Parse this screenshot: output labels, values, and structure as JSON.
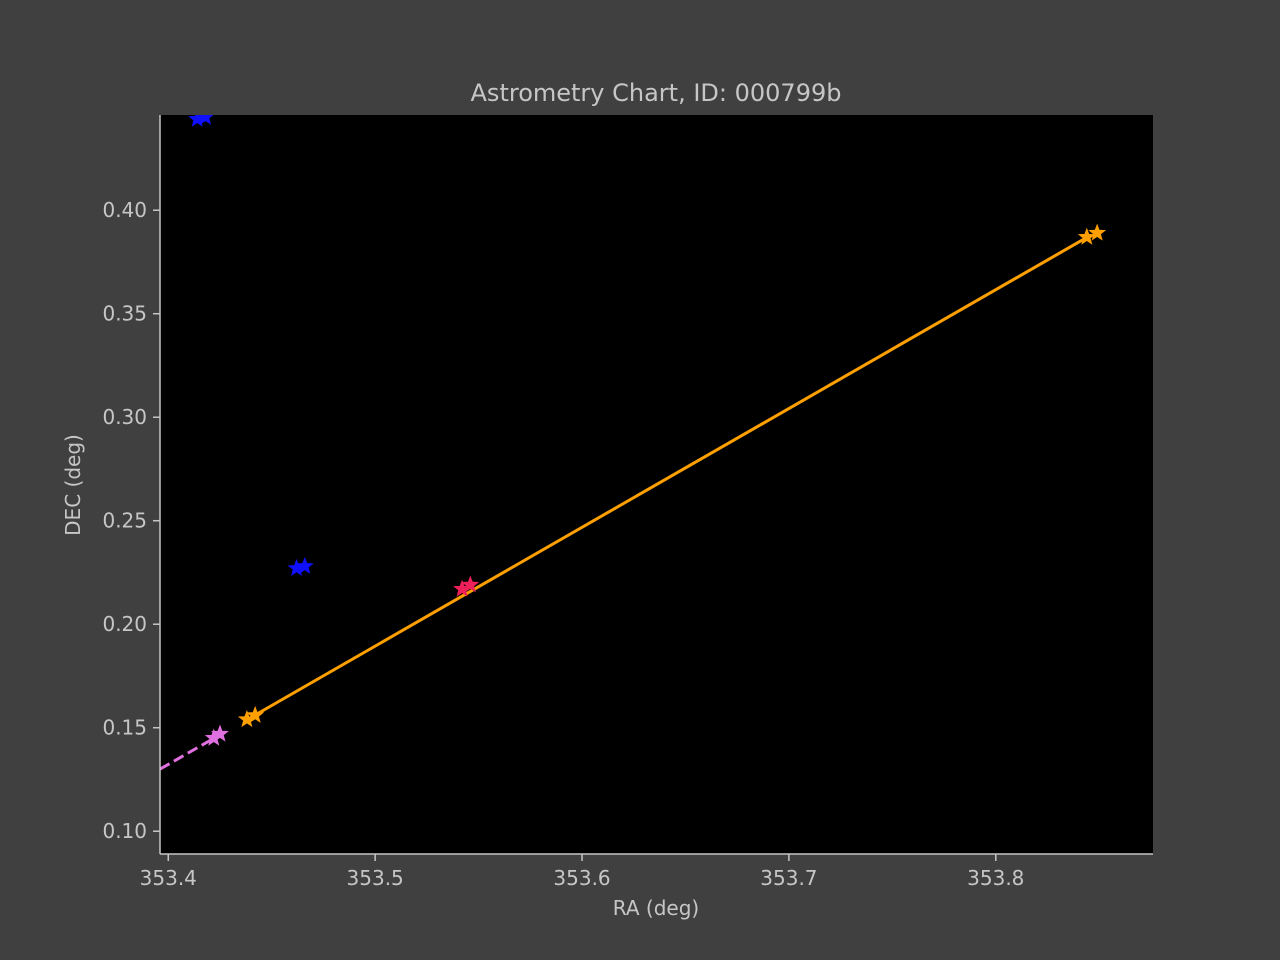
{
  "colors": {
    "figure_bg": "#404040",
    "plot_bg": "#000000",
    "text": "#c6c6c6",
    "axis": "#c6c6c6",
    "orange": "#ffa000",
    "pink": "#e070e0",
    "blue": "#1010ff",
    "red": "#f0205a"
  },
  "chart_data": {
    "type": "scatter",
    "title": "Astrometry Chart, ID: 000799b",
    "xlabel": "RA (deg)",
    "ylabel": "DEC (deg)",
    "xlim": [
      353.396,
      353.876
    ],
    "ylim": [
      0.089,
      0.446
    ],
    "xticks": [
      353.4,
      353.5,
      353.6,
      353.7,
      353.8
    ],
    "xtick_labels": [
      "353.4",
      "353.5",
      "353.6",
      "353.7",
      "353.8"
    ],
    "yticks": [
      0.1,
      0.15,
      0.2,
      0.25,
      0.3,
      0.35,
      0.4
    ],
    "ytick_labels": [
      "0.10",
      "0.15",
      "0.20",
      "0.25",
      "0.30",
      "0.35",
      "0.40"
    ],
    "grid": false,
    "series": [
      {
        "marker": "star",
        "color": "orange",
        "line": "solid",
        "x": [
          353.44,
          353.846
        ],
        "y": [
          0.155,
          0.388
        ],
        "points": [
          [
            353.438,
            0.154
          ],
          [
            353.442,
            0.156
          ],
          [
            353.844,
            0.387
          ],
          [
            353.849,
            0.389
          ]
        ]
      },
      {
        "marker": "star",
        "color": "pink",
        "line": "dashed",
        "x": [
          353.396,
          353.424
        ],
        "y": [
          0.13,
          0.146
        ],
        "points": [
          [
            353.422,
            0.145
          ],
          [
            353.425,
            0.147
          ]
        ]
      },
      {
        "marker": "star",
        "color": "blue",
        "line": "none",
        "points": [
          [
            353.414,
            0.444
          ],
          [
            353.418,
            0.445
          ],
          [
            353.462,
            0.227
          ],
          [
            353.466,
            0.228
          ]
        ]
      },
      {
        "marker": "star",
        "color": "red",
        "line": "none",
        "points": [
          [
            353.542,
            0.217
          ],
          [
            353.546,
            0.219
          ]
        ]
      }
    ]
  }
}
